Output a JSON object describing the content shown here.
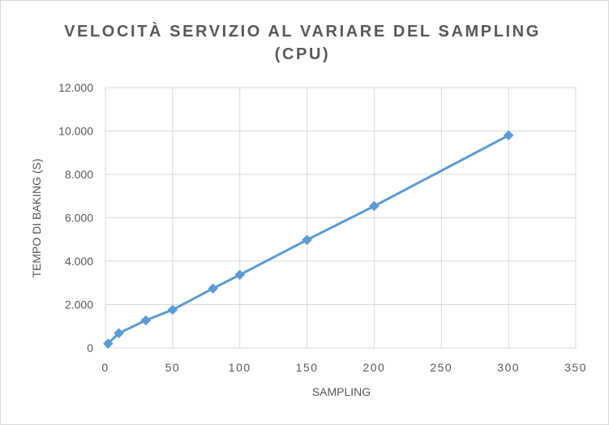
{
  "chart_data": {
    "type": "scatter",
    "title_line1": "VELOCITÀ SERVIZIO AL VARIARE DEL SAMPLING",
    "title_line2": "(CPU)",
    "xlabel": "SAMPLING",
    "ylabel": "TEMPO DI BAKING (S)",
    "xlim": [
      0,
      350
    ],
    "ylim": [
      0,
      12000
    ],
    "x_ticks": [
      0,
      50,
      100,
      150,
      200,
      250,
      300,
      350
    ],
    "x_tick_labels": [
      "0",
      "50",
      "100",
      "150",
      "200",
      "250",
      "300",
      "350"
    ],
    "y_ticks": [
      0,
      2000,
      4000,
      6000,
      8000,
      10000,
      12000
    ],
    "y_tick_labels": [
      "0",
      "2.000",
      "4.000",
      "6.000",
      "8.000",
      "10.000",
      "12.000"
    ],
    "grid": true,
    "legend": "none",
    "series": [
      {
        "color": "#5b9bd5",
        "marker": "diamond",
        "x": [
          2,
          10,
          30,
          50,
          80,
          100,
          150,
          200,
          300
        ],
        "y": [
          200,
          680,
          1270,
          1760,
          2740,
          3370,
          4980,
          6540,
          9800
        ]
      }
    ]
  }
}
